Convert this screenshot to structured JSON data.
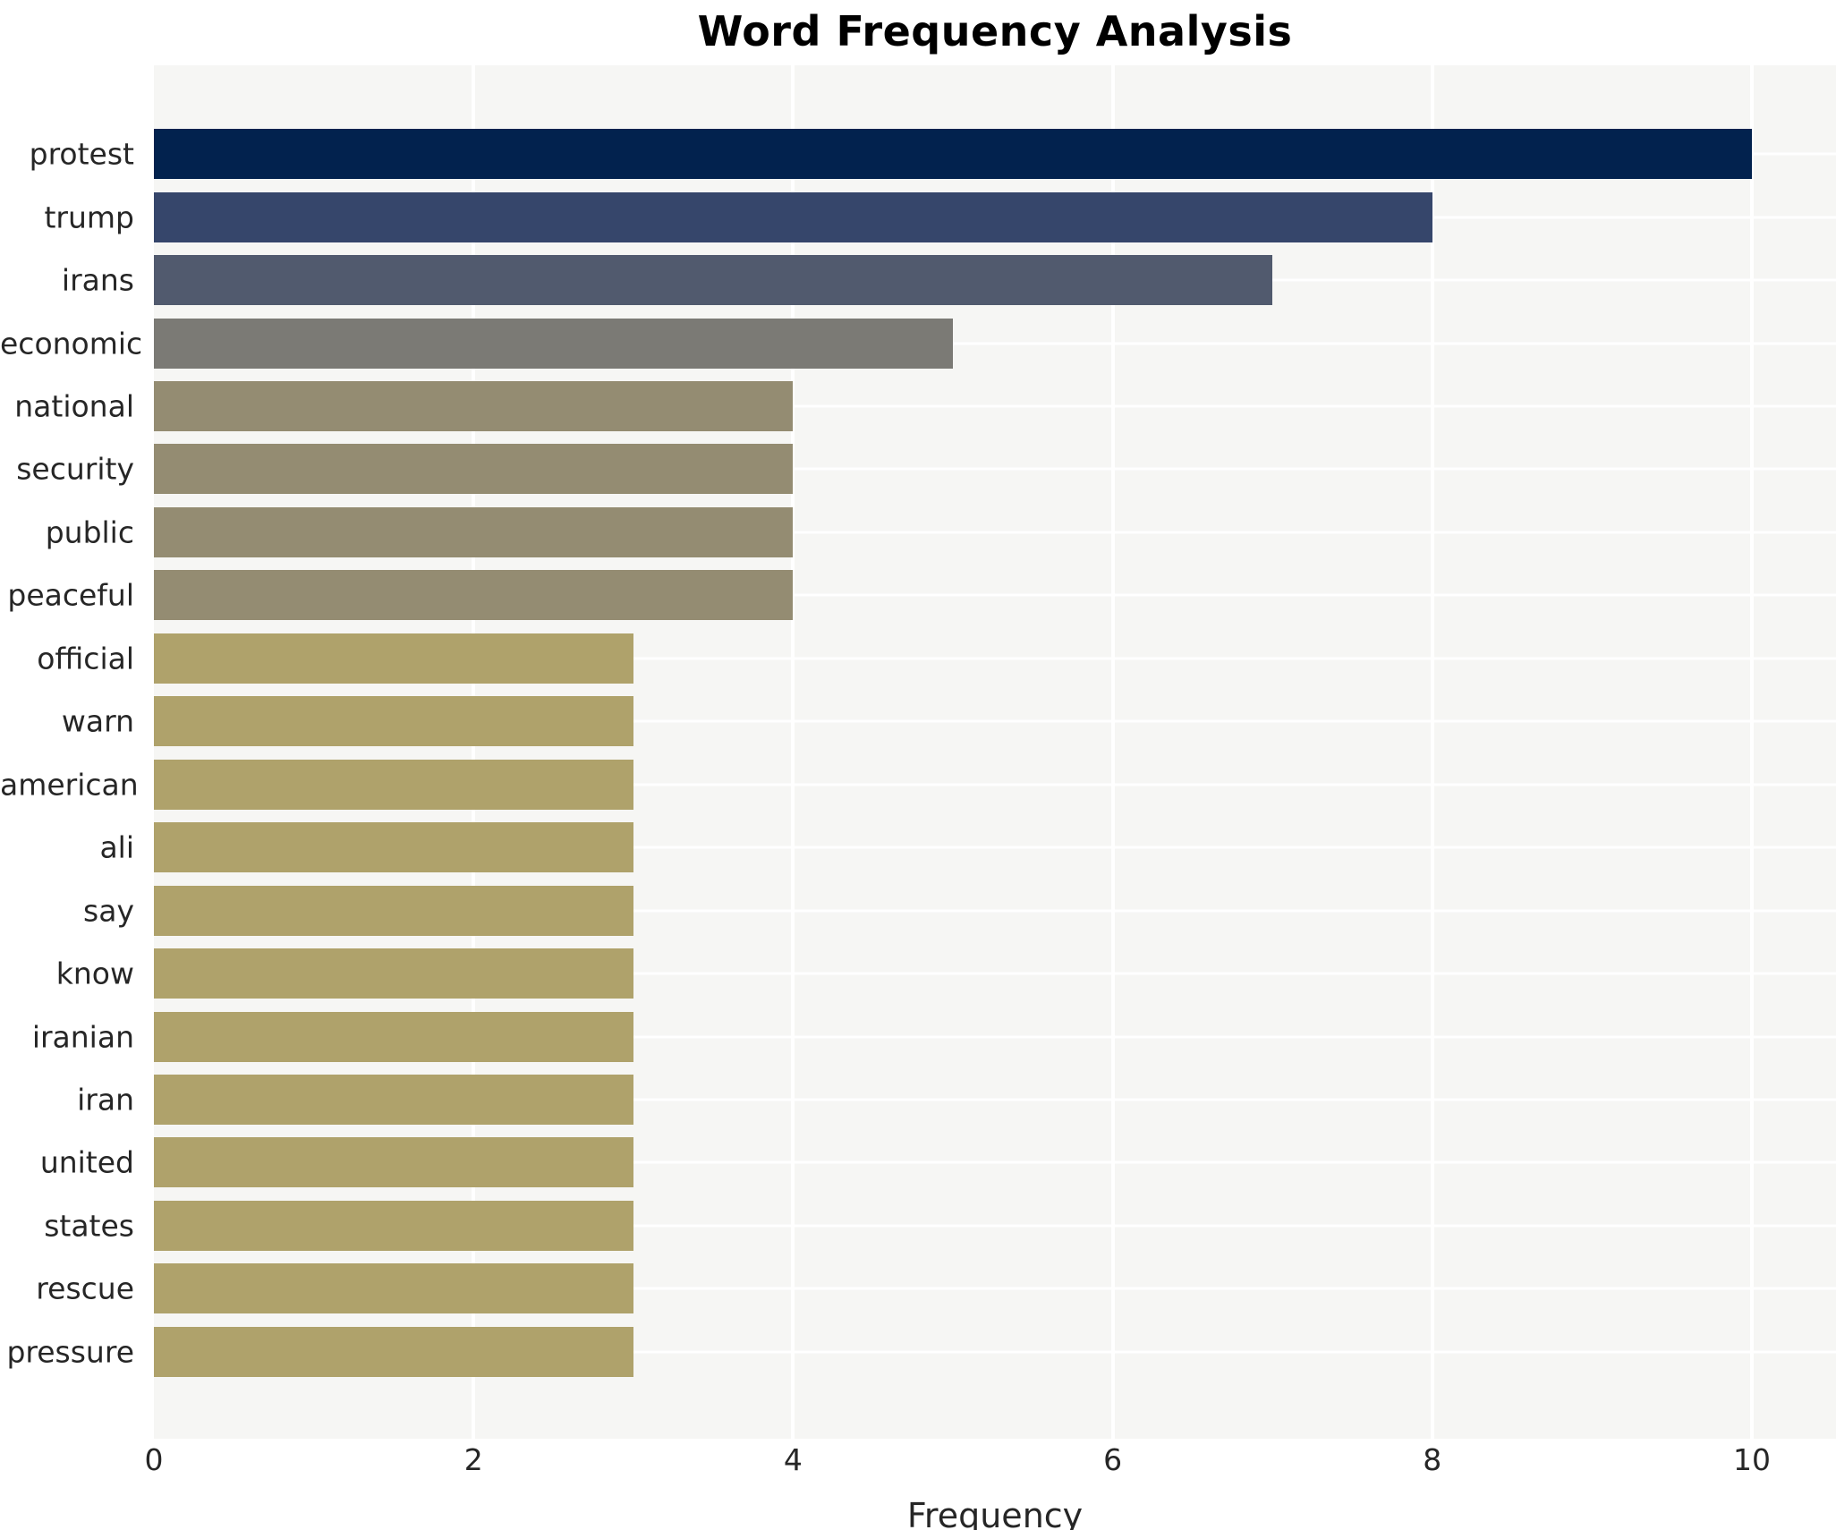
{
  "title": "Word Frequency Analysis",
  "xlabel": "Frequency",
  "colors": {
    "figure_bg": "#ffffff",
    "plot_bg": "#f6f6f4",
    "grid": "#ffffff",
    "text": "#262626",
    "title_text": "#000000",
    "value_10": "#02224e",
    "value_8": "#36466b",
    "value_7": "#515a6e",
    "value_5": "#7b7a75",
    "value_4": "#948c72",
    "value_3": "#afa26b"
  },
  "chart_data": {
    "type": "bar",
    "orientation": "horizontal",
    "title": "Word Frequency Analysis",
    "xlabel": "Frequency",
    "ylabel": "",
    "categories": [
      "protest",
      "trump",
      "irans",
      "economic",
      "national",
      "security",
      "public",
      "peaceful",
      "official",
      "warn",
      "american",
      "ali",
      "say",
      "know",
      "iranian",
      "iran",
      "united",
      "states",
      "rescue",
      "pressure"
    ],
    "values": [
      10,
      8,
      7,
      5,
      4,
      4,
      4,
      4,
      3,
      3,
      3,
      3,
      3,
      3,
      3,
      3,
      3,
      3,
      3,
      3
    ],
    "bar_colors": [
      "#02224e",
      "#36466b",
      "#515a6e",
      "#7b7a75",
      "#948c72",
      "#948c72",
      "#948c72",
      "#948c72",
      "#afa26b",
      "#afa26b",
      "#afa26b",
      "#afa26b",
      "#afa26b",
      "#afa26b",
      "#afa26b",
      "#afa26b",
      "#afa26b",
      "#afa26b",
      "#afa26b",
      "#afa26b"
    ],
    "xticks": [
      0,
      2,
      4,
      6,
      8,
      10
    ],
    "xlim": [
      0,
      10.5
    ],
    "grid": true,
    "legend": "none"
  }
}
